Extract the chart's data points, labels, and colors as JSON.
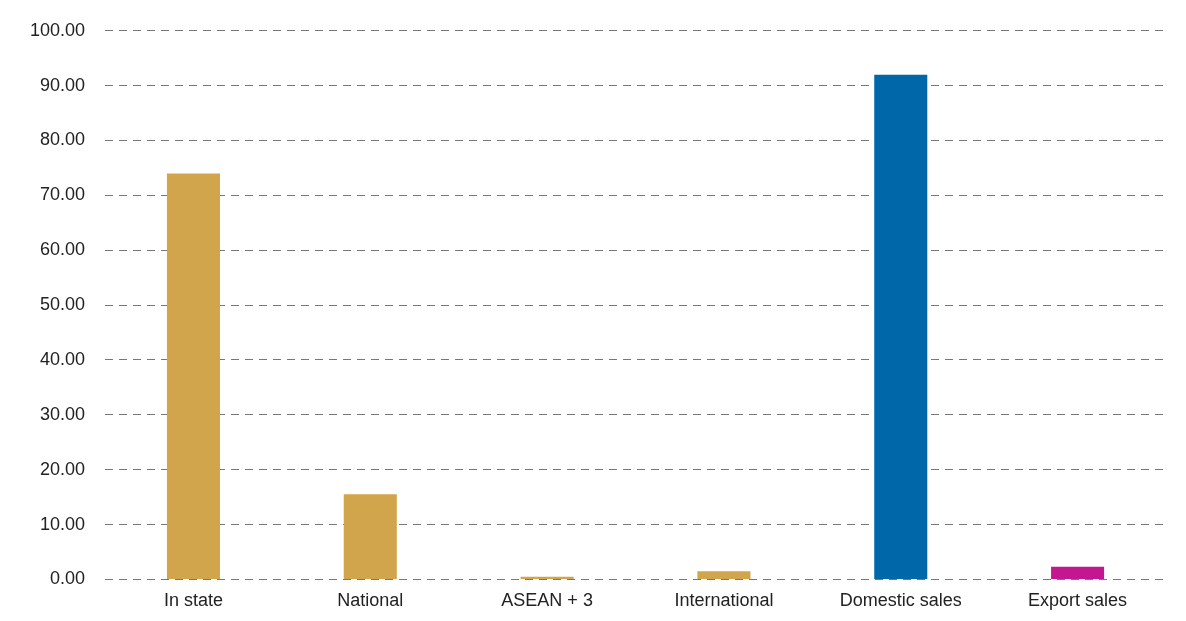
{
  "chart_data": {
    "type": "bar",
    "categories": [
      "In state",
      "National",
      "ASEAN + 3",
      "International",
      "Domestic sales",
      "Export sales"
    ],
    "values": [
      74,
      15.5,
      0.5,
      1.5,
      92,
      2.3
    ],
    "colors": [
      "#d1a54b",
      "#d1a54b",
      "#d1a54b",
      "#d1a54b",
      "#0068a8",
      "#c4168e"
    ],
    "ylim": [
      0,
      100
    ],
    "yticks": [
      {
        "value": 0,
        "label": "0.00"
      },
      {
        "value": 10,
        "label": "10.00"
      },
      {
        "value": 20,
        "label": "20.00"
      },
      {
        "value": 30,
        "label": "30.00"
      },
      {
        "value": 40,
        "label": "40.00"
      },
      {
        "value": 50,
        "label": "50.00"
      },
      {
        "value": 60,
        "label": "60.00"
      },
      {
        "value": 70,
        "label": "70.00"
      },
      {
        "value": 80,
        "label": "80.00"
      },
      {
        "value": 90,
        "label": "90.00"
      },
      {
        "value": 100,
        "label": "100.00"
      }
    ],
    "grid": "y"
  }
}
